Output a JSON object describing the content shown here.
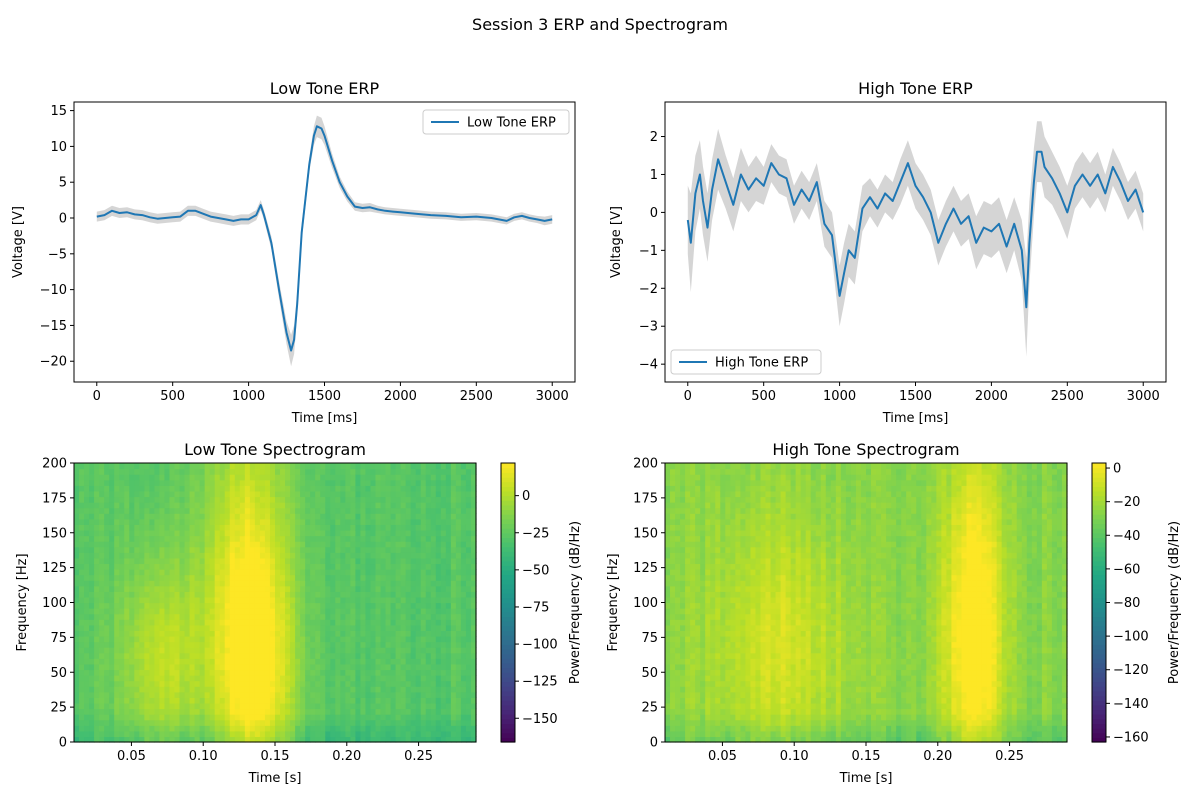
{
  "figure": {
    "title": "Session 3 ERP and Spectrogram"
  },
  "colors": {
    "erp_line": "#1f77b4",
    "error_band": "#b3b3b3",
    "colormap": "viridis"
  },
  "chart_data": [
    {
      "id": "low-erp",
      "type": "line",
      "title": "Low Tone ERP",
      "xlabel": "Time [ms]",
      "ylabel": "Voltage [V]",
      "xlim": [
        -150,
        3150
      ],
      "ylim": [
        -22.9,
        16.2
      ],
      "xticks": [
        0,
        500,
        1000,
        1500,
        2000,
        2500,
        3000
      ],
      "yticks": [
        -20,
        -15,
        -10,
        -5,
        0,
        5,
        10,
        15
      ],
      "legend": {
        "label": "Low Tone ERP",
        "loc": "upper right"
      },
      "series": [
        {
          "name": "Low Tone ERP",
          "x": [
            0,
            50,
            100,
            150,
            200,
            250,
            300,
            350,
            400,
            450,
            500,
            550,
            600,
            650,
            700,
            750,
            800,
            850,
            900,
            950,
            1000,
            1050,
            1080,
            1100,
            1150,
            1200,
            1250,
            1280,
            1300,
            1320,
            1350,
            1400,
            1430,
            1450,
            1480,
            1500,
            1550,
            1600,
            1650,
            1700,
            1750,
            1800,
            1850,
            1900,
            1950,
            2000,
            2100,
            2200,
            2300,
            2400,
            2500,
            2600,
            2700,
            2750,
            2800,
            2850,
            2900,
            2950,
            3000
          ],
          "y": [
            0.2,
            0.4,
            1.0,
            0.7,
            0.8,
            0.5,
            0.4,
            0.1,
            -0.1,
            0.0,
            0.1,
            0.2,
            1.0,
            1.0,
            0.6,
            0.2,
            0.0,
            -0.2,
            -0.4,
            -0.2,
            -0.2,
            0.4,
            1.8,
            0.5,
            -3.5,
            -10.0,
            -16.0,
            -18.5,
            -17.0,
            -12.0,
            -2.0,
            7.5,
            11.5,
            12.8,
            12.5,
            11.5,
            8.0,
            5.0,
            3.0,
            1.6,
            1.4,
            1.5,
            1.2,
            1.0,
            0.9,
            0.8,
            0.6,
            0.4,
            0.3,
            0.1,
            0.2,
            0.0,
            -0.4,
            0.1,
            0.3,
            0.0,
            -0.2,
            -0.4,
            -0.2
          ],
          "error": [
            0.7,
            0.7,
            0.7,
            0.7,
            0.7,
            0.7,
            0.7,
            0.7,
            0.7,
            0.7,
            0.7,
            0.7,
            0.7,
            0.7,
            0.7,
            0.7,
            0.7,
            0.7,
            0.7,
            0.7,
            0.7,
            0.7,
            0.7,
            0.7,
            0.9,
            1.2,
            1.6,
            2.2,
            2.0,
            1.6,
            1.2,
            1.0,
            1.3,
            1.5,
            1.5,
            1.3,
            1.0,
            0.8,
            0.7,
            0.6,
            0.6,
            0.6,
            0.5,
            0.5,
            0.5,
            0.5,
            0.5,
            0.5,
            0.5,
            0.5,
            0.5,
            0.5,
            0.5,
            0.5,
            0.5,
            0.5,
            0.5,
            0.6,
            0.6
          ]
        }
      ]
    },
    {
      "id": "high-erp",
      "type": "line",
      "title": "High Tone ERP",
      "xlabel": "Time [ms]",
      "ylabel": "Voltage [V]",
      "xlim": [
        -150,
        3150
      ],
      "ylim": [
        -4.47,
        2.91
      ],
      "xticks": [
        0,
        500,
        1000,
        1500,
        2000,
        2500,
        3000
      ],
      "yticks": [
        -4,
        -3,
        -2,
        -1,
        0,
        1,
        2
      ],
      "legend": {
        "label": "High Tone ERP",
        "loc": "lower left"
      },
      "series": [
        {
          "name": "High Tone ERP",
          "x": [
            0,
            20,
            50,
            80,
            100,
            130,
            160,
            200,
            250,
            300,
            350,
            400,
            450,
            500,
            550,
            600,
            650,
            700,
            750,
            800,
            850,
            900,
            950,
            1000,
            1030,
            1060,
            1100,
            1150,
            1200,
            1250,
            1300,
            1350,
            1400,
            1450,
            1500,
            1550,
            1600,
            1650,
            1700,
            1750,
            1800,
            1850,
            1900,
            1950,
            2000,
            2050,
            2100,
            2150,
            2200,
            2230,
            2250,
            2280,
            2300,
            2330,
            2350,
            2400,
            2450,
            2500,
            2550,
            2600,
            2650,
            2700,
            2750,
            2800,
            2850,
            2900,
            2950,
            3000
          ],
          "y": [
            -0.2,
            -0.8,
            0.5,
            1.0,
            0.3,
            -0.4,
            0.6,
            1.4,
            0.8,
            0.2,
            1.0,
            0.6,
            0.9,
            0.7,
            1.3,
            1.0,
            0.9,
            0.2,
            0.6,
            0.3,
            0.8,
            -0.3,
            -0.6,
            -2.2,
            -1.6,
            -1.0,
            -1.2,
            0.1,
            0.4,
            0.1,
            0.5,
            0.3,
            0.8,
            1.3,
            0.7,
            0.4,
            0.0,
            -0.8,
            -0.3,
            0.1,
            -0.3,
            -0.1,
            -0.8,
            -0.4,
            -0.5,
            -0.3,
            -0.9,
            -0.3,
            -1.0,
            -2.5,
            -0.8,
            0.8,
            1.6,
            1.6,
            1.2,
            0.9,
            0.5,
            0.0,
            0.7,
            1.0,
            0.7,
            1.0,
            0.5,
            1.2,
            0.8,
            0.3,
            0.6,
            0.0
          ],
          "error": [
            0.9,
            1.3,
            1.0,
            0.9,
            0.9,
            0.9,
            0.8,
            0.8,
            0.7,
            0.7,
            0.7,
            0.6,
            0.6,
            0.5,
            0.5,
            0.5,
            0.5,
            0.5,
            0.5,
            0.5,
            0.5,
            0.6,
            0.6,
            0.8,
            0.8,
            0.7,
            0.7,
            0.6,
            0.5,
            0.5,
            0.5,
            0.5,
            0.6,
            0.6,
            0.6,
            0.6,
            0.6,
            0.6,
            0.6,
            0.6,
            0.6,
            0.6,
            0.7,
            0.7,
            0.7,
            0.7,
            0.7,
            0.7,
            0.8,
            1.3,
            1.1,
            0.9,
            0.8,
            0.8,
            0.8,
            0.7,
            0.7,
            0.7,
            0.6,
            0.6,
            0.6,
            0.6,
            0.5,
            0.5,
            0.5,
            0.5,
            0.5,
            0.5
          ]
        }
      ]
    },
    {
      "id": "low-spec",
      "type": "heatmap",
      "title": "Low Tone Spectrogram",
      "xlabel": "Time [s]",
      "ylabel": "Frequency [Hz]",
      "xlim": [
        0.01,
        0.29
      ],
      "ylim": [
        0,
        200
      ],
      "xticks": [
        0.05,
        0.1,
        0.15,
        0.2,
        0.25
      ],
      "yticks": [
        0,
        25,
        50,
        75,
        100,
        125,
        150,
        175,
        200
      ],
      "colorbar": {
        "label": "Power/Frequency (dB/Hz)",
        "vmin": -166,
        "vmax": 22,
        "ticks": [
          0,
          -25,
          -50,
          -75,
          -100,
          -125,
          -150
        ]
      },
      "hotspots": [
        {
          "t": 0.135,
          "f": 45,
          "dt": 0.028,
          "df": 90,
          "db": 18
        },
        {
          "t": 0.13,
          "f": 140,
          "dt": 0.03,
          "df": 120,
          "db": 8
        },
        {
          "t": 0.07,
          "f": 60,
          "dt": 0.03,
          "df": 80,
          "db": 4
        }
      ],
      "base_db": -28,
      "low_freq_db": -40
    },
    {
      "id": "high-spec",
      "type": "heatmap",
      "title": "High Tone Spectrogram",
      "xlabel": "Time [s]",
      "ylabel": "Frequency [Hz]",
      "xlim": [
        0.01,
        0.29
      ],
      "ylim": [
        0,
        200
      ],
      "xticks": [
        0.05,
        0.1,
        0.15,
        0.2,
        0.25
      ],
      "yticks": [
        0,
        25,
        50,
        75,
        100,
        125,
        150,
        175,
        200
      ],
      "colorbar": {
        "label": "Power/Frequency (dB/Hz)",
        "vmin": -163,
        "vmax": 3,
        "ticks": [
          0,
          -20,
          -40,
          -60,
          -80,
          -100,
          -120,
          -140,
          -160
        ]
      },
      "hotspots": [
        {
          "t": 0.225,
          "f": 45,
          "dt": 0.022,
          "df": 90,
          "db": 2
        },
        {
          "t": 0.225,
          "f": 140,
          "dt": 0.022,
          "df": 90,
          "db": -6
        },
        {
          "t": 0.09,
          "f": 70,
          "dt": 0.05,
          "df": 100,
          "db": -8
        }
      ],
      "base_db": -28,
      "low_freq_db": -40
    }
  ]
}
